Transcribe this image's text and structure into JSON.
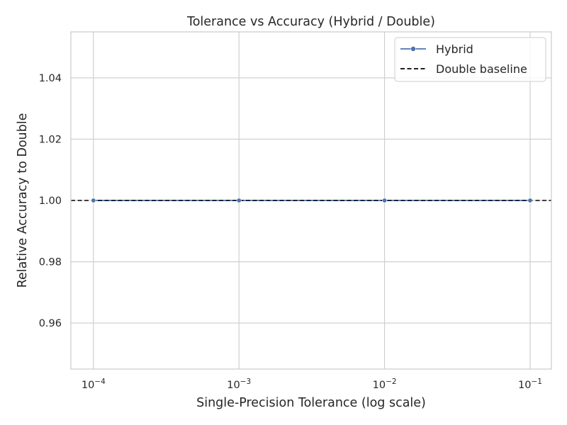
{
  "chart_data": {
    "type": "line",
    "title": "Tolerance vs Accuracy (Hybrid / Double)",
    "xlabel": "Single-Precision Tolerance (log scale)",
    "ylabel": "Relative Accuracy to Double",
    "x_scale": "log",
    "xlim": [
      7e-05,
      0.14
    ],
    "ylim": [
      0.945,
      1.055
    ],
    "x_ticks": [
      {
        "value": 0.0001,
        "base": "10",
        "exp": "−4"
      },
      {
        "value": 0.001,
        "base": "10",
        "exp": "−3"
      },
      {
        "value": 0.01,
        "base": "10",
        "exp": "−2"
      },
      {
        "value": 0.1,
        "base": "10",
        "exp": "−1"
      }
    ],
    "y_ticks": [
      {
        "value": 0.96,
        "label": "0.96"
      },
      {
        "value": 0.98,
        "label": "0.98"
      },
      {
        "value": 1.0,
        "label": "1.00"
      },
      {
        "value": 1.02,
        "label": "1.02"
      },
      {
        "value": 1.04,
        "label": "1.04"
      }
    ],
    "series": [
      {
        "name": "Hybrid",
        "color": "#4c72b0",
        "marker": "circle",
        "x": [
          0.0001,
          0.001,
          0.01,
          0.1
        ],
        "y": [
          1.0,
          1.0,
          1.0,
          1.0
        ]
      }
    ],
    "reference_lines": [
      {
        "name": "Double baseline",
        "y": 1.0,
        "color": "#000000",
        "style": "dashed"
      }
    ],
    "grid": true,
    "legend_position": "top-right"
  }
}
